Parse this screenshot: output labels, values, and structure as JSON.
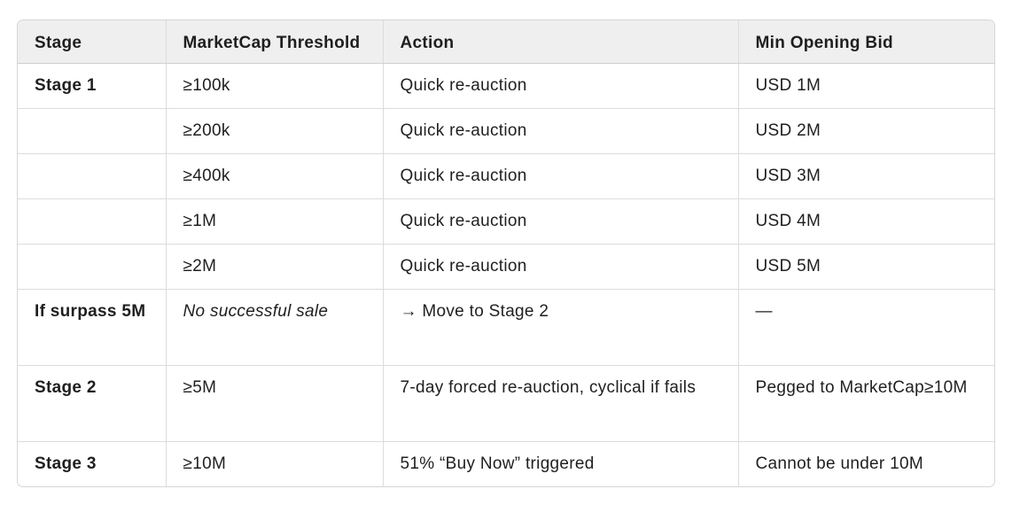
{
  "table": {
    "headers": [
      "Stage",
      "MarketCap Threshold",
      "Action",
      "Min Opening Bid"
    ],
    "rows": [
      {
        "stage": "Stage 1",
        "threshold": "≥100k",
        "action": "Quick re-auction",
        "bid": "USD 1M"
      },
      {
        "stage": "",
        "threshold": "≥200k",
        "action": "Quick re-auction",
        "bid": "USD 2M"
      },
      {
        "stage": "",
        "threshold": "≥400k",
        "action": "Quick re-auction",
        "bid": "USD 3M"
      },
      {
        "stage": "",
        "threshold": "≥1M",
        "action": "Quick re-auction",
        "bid": "USD 4M"
      },
      {
        "stage": "",
        "threshold": "≥2M",
        "action": "Quick re-auction",
        "bid": "USD 5M"
      },
      {
        "stage": "If surpass 5M",
        "threshold": "No successful sale",
        "action": "→ Move to Stage 2",
        "bid": "—"
      },
      {
        "stage": "Stage 2",
        "threshold": "≥5M",
        "action": "7-day forced re-auction, cyclical if fails",
        "bid": "Pegged to MarketCap≥10M"
      },
      {
        "stage": "Stage 3",
        "threshold": "≥10M",
        "action": "51% “Buy Now” triggered",
        "bid": "Cannot be under 10M"
      }
    ]
  }
}
